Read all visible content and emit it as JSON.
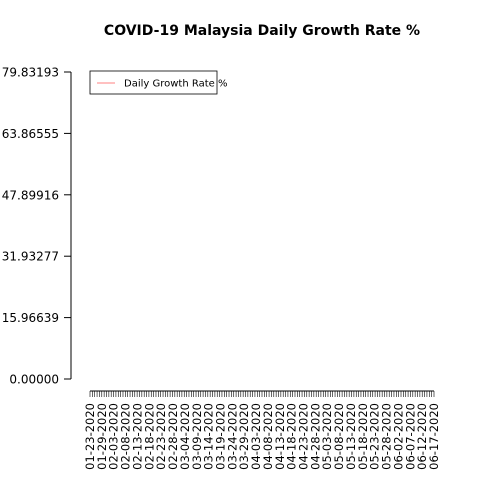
{
  "chart_data": {
    "type": "line",
    "title": "COVID-19 Malaysia Daily Growth Rate %",
    "xlabel": "",
    "ylabel": "",
    "ylim": [
      0,
      79.83193
    ],
    "y_ticks": [
      "0.00000",
      "15.96639",
      "31.93277",
      "47.89916",
      "63.86555",
      "79.83193"
    ],
    "x_tick_labels": [
      "01-23-2020",
      "01-29-2020",
      "02-03-2020",
      "02-08-2020",
      "02-13-2020",
      "02-18-2020",
      "02-23-2020",
      "02-28-2020",
      "03-04-2020",
      "03-09-2020",
      "03-14-2020",
      "03-19-2020",
      "03-24-2020",
      "03-29-2020",
      "04-03-2020",
      "04-08-2020",
      "04-13-2020",
      "04-18-2020",
      "04-23-2020",
      "04-28-2020",
      "05-03-2020",
      "05-08-2020",
      "05-13-2020",
      "05-18-2020",
      "05-23-2020",
      "05-28-2020",
      "06-02-2020",
      "06-07-2020",
      "06-12-2020",
      "06-17-2020"
    ],
    "x_minor_tick_count": 147,
    "series": [
      {
        "name": "Daily Growth Rate %",
        "color": "#ff8080",
        "values": []
      }
    ],
    "legend_position": "top-left",
    "grid": false
  }
}
